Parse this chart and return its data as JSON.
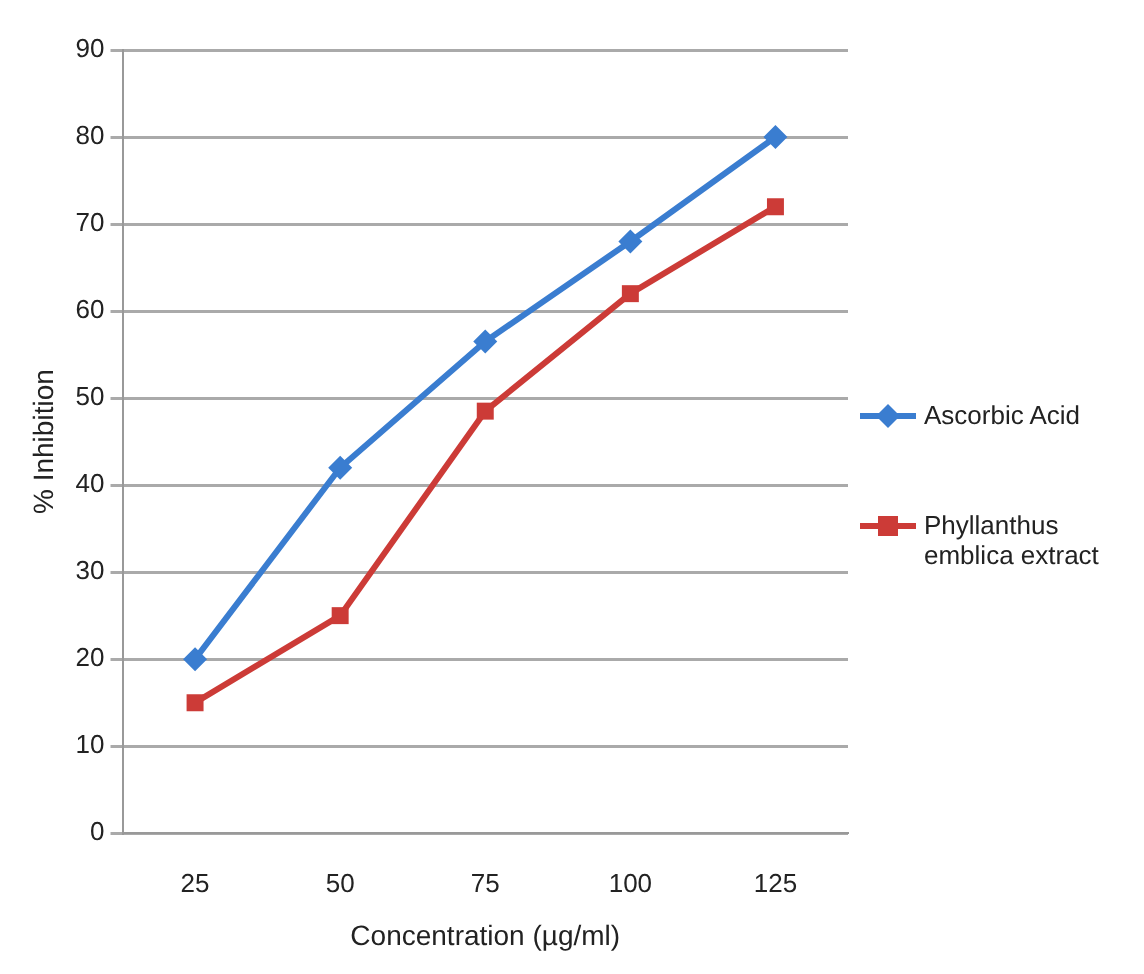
{
  "chart_data": {
    "type": "line",
    "xlabel": "Concentration (µg/ml)",
    "ylabel": "% Inhibition",
    "categories": [
      "25",
      "50",
      "75",
      "100",
      "125"
    ],
    "series": [
      {
        "name": "Ascorbic Acid",
        "color": "#3a7dd0",
        "marker": "diamond",
        "values": [
          20,
          42,
          56.5,
          68,
          80
        ]
      },
      {
        "name": "Phyllanthus emblica extract",
        "color": "#cc3b37",
        "marker": "square",
        "values": [
          15,
          25,
          48.5,
          62,
          72
        ]
      }
    ],
    "ylim": [
      0,
      90
    ],
    "yticks": [
      0,
      10,
      20,
      30,
      40,
      50,
      60,
      70,
      80,
      90
    ],
    "grid": "y",
    "legend": "right"
  }
}
